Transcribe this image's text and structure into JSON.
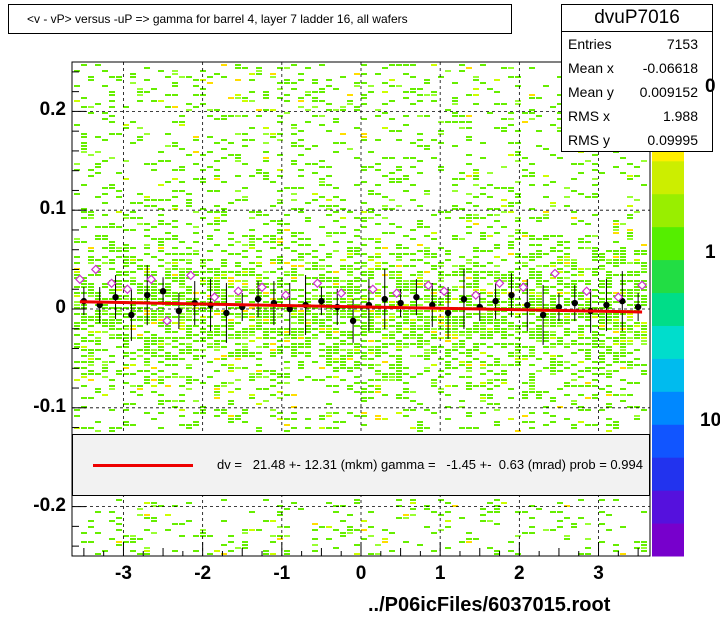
{
  "title": "<v - vP>       versus  -uP =>  gamma for barrel 4, layer 7 ladder 16, all wafers",
  "stats": {
    "name": "dvuP7016",
    "rows": [
      {
        "key": "Entries",
        "value": "7153"
      },
      {
        "key": "Mean x",
        "value": "-0.06618"
      },
      {
        "key": "Mean y",
        "value": "0.009152"
      },
      {
        "key": "RMS x",
        "value": "1.988"
      },
      {
        "key": "RMS y",
        "value": "0.09995"
      }
    ]
  },
  "fit_legend": "dv =   21.48 +- 12.31 (mkm) gamma =   -1.45 +-  0.63 (mrad) prob = 0.994",
  "footer": "../P06icFiles/6037015.root",
  "colors": {
    "fit_line": "#ee0000",
    "profile_points": "#000000",
    "open_markers": "#cc33cc",
    "histogram_dominant": "#66ee00"
  },
  "chart_data": {
    "type": "scatter",
    "xlim": [
      -3.65,
      3.65
    ],
    "ylim": [
      -0.25,
      0.25
    ],
    "x_ticks": [
      "-3",
      "-2",
      "-1",
      "0",
      "1",
      "2",
      "3"
    ],
    "y_ticks": [
      "0.2",
      "0.1",
      "0",
      "-0.1",
      "-0.2"
    ],
    "z_ticks": [
      "0",
      "1",
      "10"
    ],
    "grid": true,
    "fit": {
      "x": [
        -3.55,
        3.55
      ],
      "y": [
        0.0073,
        -0.003
      ]
    },
    "profile_points": [
      {
        "x": -3.5,
        "y": 0.008
      },
      {
        "x": -3.3,
        "y": 0.004
      },
      {
        "x": -3.1,
        "y": 0.012
      },
      {
        "x": -2.9,
        "y": -0.006
      },
      {
        "x": -2.7,
        "y": 0.014
      },
      {
        "x": -2.5,
        "y": 0.018
      },
      {
        "x": -2.3,
        "y": -0.002
      },
      {
        "x": -2.1,
        "y": 0.006
      },
      {
        "x": -1.9,
        "y": 0.004
      },
      {
        "x": -1.7,
        "y": -0.004
      },
      {
        "x": -1.5,
        "y": 0.002
      },
      {
        "x": -1.3,
        "y": 0.01
      },
      {
        "x": -1.1,
        "y": 0.006
      },
      {
        "x": -0.9,
        "y": 0.0
      },
      {
        "x": -0.7,
        "y": 0.004
      },
      {
        "x": -0.5,
        "y": 0.008
      },
      {
        "x": -0.3,
        "y": 0.002
      },
      {
        "x": -0.1,
        "y": -0.012
      },
      {
        "x": 0.1,
        "y": 0.004
      },
      {
        "x": 0.3,
        "y": 0.01
      },
      {
        "x": 0.5,
        "y": 0.006
      },
      {
        "x": 0.7,
        "y": 0.012
      },
      {
        "x": 0.9,
        "y": 0.004
      },
      {
        "x": 1.1,
        "y": -0.004
      },
      {
        "x": 1.3,
        "y": 0.01
      },
      {
        "x": 1.5,
        "y": 0.002
      },
      {
        "x": 1.7,
        "y": 0.008
      },
      {
        "x": 1.9,
        "y": 0.014
      },
      {
        "x": 2.1,
        "y": 0.004
      },
      {
        "x": 2.3,
        "y": -0.006
      },
      {
        "x": 2.5,
        "y": 0.002
      },
      {
        "x": 2.7,
        "y": 0.006
      },
      {
        "x": 2.9,
        "y": -0.002
      },
      {
        "x": 3.1,
        "y": 0.004
      },
      {
        "x": 3.3,
        "y": 0.008
      },
      {
        "x": 3.5,
        "y": 0.002
      }
    ],
    "open_points": [
      {
        "x": -3.55,
        "y": 0.03
      },
      {
        "x": -3.35,
        "y": 0.04
      },
      {
        "x": -3.15,
        "y": 0.026
      },
      {
        "x": -2.95,
        "y": 0.02
      },
      {
        "x": -2.65,
        "y": 0.03
      },
      {
        "x": -2.45,
        "y": -0.012
      },
      {
        "x": -2.15,
        "y": 0.034
      },
      {
        "x": -1.85,
        "y": 0.012
      },
      {
        "x": -1.55,
        "y": 0.018
      },
      {
        "x": -1.25,
        "y": 0.022
      },
      {
        "x": -0.95,
        "y": 0.014
      },
      {
        "x": -0.55,
        "y": 0.026
      },
      {
        "x": -0.25,
        "y": 0.016
      },
      {
        "x": 0.15,
        "y": 0.02
      },
      {
        "x": 0.45,
        "y": 0.016
      },
      {
        "x": 0.85,
        "y": 0.024
      },
      {
        "x": 1.05,
        "y": 0.018
      },
      {
        "x": 1.45,
        "y": 0.014
      },
      {
        "x": 1.75,
        "y": 0.026
      },
      {
        "x": 2.05,
        "y": 0.022
      },
      {
        "x": 2.45,
        "y": 0.036
      },
      {
        "x": 2.85,
        "y": 0.018
      },
      {
        "x": 3.25,
        "y": 0.012
      },
      {
        "x": 3.55,
        "y": 0.024
      }
    ]
  }
}
